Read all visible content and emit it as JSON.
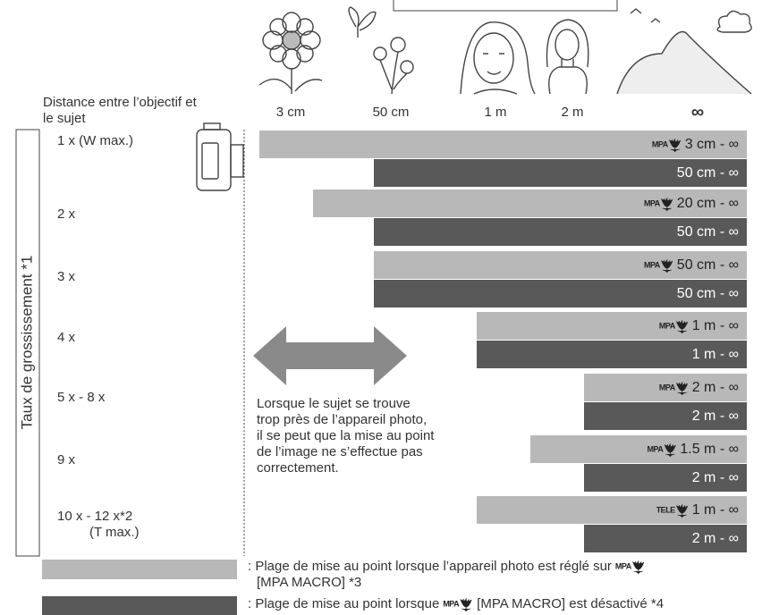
{
  "header": {
    "distance_label": [
      "Distance entre l’objectif et",
      "le sujet"
    ],
    "distances": [
      "3 cm",
      "50 cm",
      "1 m",
      "2 m",
      "∞"
    ]
  },
  "axis_label": "Taux de grossissement *1",
  "zoom_levels": [
    "1 x   (W max.)",
    "2 x",
    "3 x",
    "4 x",
    "5 x  -  8 x",
    "9 x",
    "10 x  -  12 x*2",
    "(T max.)"
  ],
  "rows": [
    {
      "light": {
        "icon": "MPA",
        "label": "3 cm - ∞"
      },
      "dark": {
        "label": "50 cm - ∞"
      }
    },
    {
      "light": {
        "icon": "MPA",
        "label": "20 cm - ∞"
      },
      "dark": {
        "label": "50 cm - ∞"
      }
    },
    {
      "light": {
        "icon": "MPA",
        "label": "50 cm - ∞"
      },
      "dark": {
        "label": "50 cm - ∞"
      }
    },
    {
      "light": {
        "icon": "MPA",
        "label": "1 m - ∞"
      },
      "dark": {
        "label": "1 m - ∞"
      }
    },
    {
      "light": {
        "icon": "MPA",
        "label": "2 m - ∞"
      },
      "dark": {
        "label": "2 m - ∞"
      }
    },
    {
      "light": {
        "icon": "MPA",
        "label": "1.5 m - ∞"
      },
      "dark": {
        "label": "2 m - ∞"
      }
    },
    {
      "light": {
        "icon": "TELE",
        "label": "1 m - ∞"
      },
      "dark": {
        "label": "2 m - ∞"
      }
    }
  ],
  "note": [
    "Lorsque le sujet se trouve",
    "trop près de l’appareil photo,",
    "il se peut que la mise au point",
    "de l’image ne s’effectue pas",
    "correctement."
  ],
  "legend": [
    {
      "before": ": Plage de mise au point lorsque l’appareil photo est réglé sur",
      "icon": "MPA",
      "after": "[MPA MACRO] *3"
    },
    {
      "before": ": Plage de mise au point lorsque",
      "icon": "MPA",
      "after": "[MPA MACRO] est désactivé *4"
    }
  ]
}
